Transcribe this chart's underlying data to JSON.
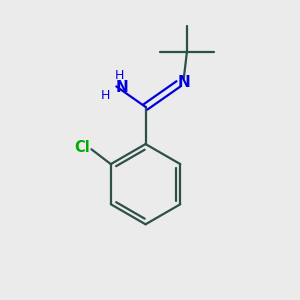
{
  "background_color": "#ebebeb",
  "bond_color": "#2d5048",
  "nitrogen_color": "#0000dd",
  "chlorine_color": "#00aa00",
  "figsize": [
    3.0,
    3.0
  ],
  "dpi": 100,
  "xlim": [
    0,
    10
  ],
  "ylim": [
    0,
    10
  ]
}
